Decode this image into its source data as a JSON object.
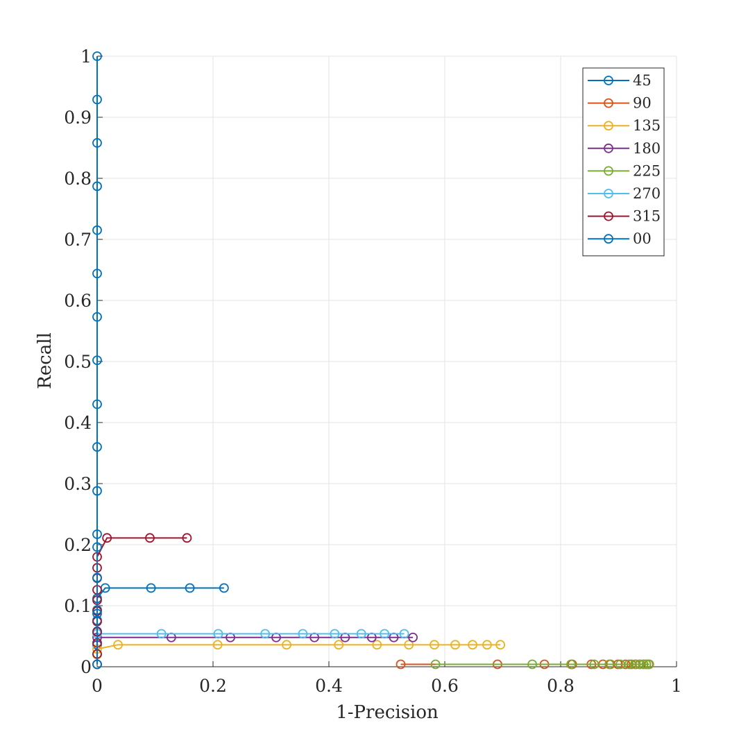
{
  "chart_data": {
    "type": "line",
    "title": "",
    "xlabel": "1-Precision",
    "ylabel": "Recall",
    "xlim": [
      0,
      1
    ],
    "ylim": [
      0,
      1
    ],
    "xticks": [
      0,
      0.2,
      0.4,
      0.6,
      0.8,
      1
    ],
    "yticks": [
      0,
      0.1,
      0.2,
      0.3,
      0.4,
      0.5,
      0.6,
      0.7,
      0.8,
      0.9,
      1
    ],
    "grid": true,
    "legend_position": "top-right",
    "marker": "circle",
    "series": [
      {
        "name": "45",
        "color": "#0072BD",
        "x": [
          0,
          0,
          0,
          0,
          0,
          0,
          0,
          0.014,
          0.093,
          0.16,
          0.219
        ],
        "y": [
          0.004,
          0.02,
          0.036,
          0.058,
          0.076,
          0.093,
          0.112,
          0.129,
          0.129,
          0.129,
          0.129
        ]
      },
      {
        "name": "90",
        "color": "#D95319",
        "x": [
          0.524,
          0.691,
          0.772,
          0.82,
          0.853,
          0.873,
          0.886,
          0.899,
          0.912,
          0.922,
          0.93,
          0.937,
          0.943,
          0.948,
          0.952
        ],
        "y": [
          0.004,
          0.004,
          0.004,
          0.004,
          0.004,
          0.004,
          0.004,
          0.004,
          0.004,
          0.004,
          0.004,
          0.004,
          0.004,
          0.004,
          0.004
        ]
      },
      {
        "name": "135",
        "color": "#EDB120",
        "x": [
          0,
          0,
          0.036,
          0.208,
          0.327,
          0.417,
          0.483,
          0.538,
          0.582,
          0.618,
          0.648,
          0.673,
          0.696
        ],
        "y": [
          0.02,
          0.029,
          0.036,
          0.036,
          0.036,
          0.036,
          0.036,
          0.036,
          0.036,
          0.036,
          0.036,
          0.036,
          0.036
        ]
      },
      {
        "name": "180",
        "color": "#7E2F8E",
        "x": [
          0,
          0.128,
          0.23,
          0.309,
          0.375,
          0.428,
          0.474,
          0.512,
          0.545
        ],
        "y": [
          0.048,
          0.048,
          0.048,
          0.048,
          0.048,
          0.048,
          0.048,
          0.048,
          0.048
        ]
      },
      {
        "name": "225",
        "color": "#77AC30",
        "x": [
          0.584,
          0.751,
          0.818,
          0.858,
          0.884,
          0.903,
          0.918,
          0.928,
          0.936,
          0.943,
          0.948,
          0.953
        ],
        "y": [
          0.004,
          0.004,
          0.004,
          0.004,
          0.004,
          0.004,
          0.004,
          0.004,
          0.004,
          0.004,
          0.004,
          0.004
        ]
      },
      {
        "name": "270",
        "color": "#4DBEEE",
        "x": [
          0,
          0.111,
          0.209,
          0.29,
          0.355,
          0.41,
          0.456,
          0.496,
          0.53
        ],
        "y": [
          0.054,
          0.054,
          0.054,
          0.054,
          0.054,
          0.054,
          0.054,
          0.054,
          0.054
        ]
      },
      {
        "name": "315",
        "color": "#A2142F",
        "x": [
          0,
          0,
          0,
          0,
          0,
          0,
          0,
          0,
          0,
          0,
          0,
          0.017,
          0.091,
          0.155
        ],
        "y": [
          0.004,
          0.021,
          0.039,
          0.057,
          0.074,
          0.091,
          0.109,
          0.126,
          0.145,
          0.162,
          0.18,
          0.211,
          0.211,
          0.211
        ]
      },
      {
        "name": "00",
        "color": "#0072BD",
        "x": [
          0,
          0,
          0,
          0,
          0,
          0,
          0,
          0,
          0,
          0,
          0,
          0,
          0,
          0,
          0,
          0
        ],
        "y": [
          0.004,
          0.087,
          0.146,
          0.217,
          0.288,
          0.36,
          0.43,
          0.502,
          0.573,
          0.644,
          0.715,
          0.787,
          0.858,
          0.929,
          1.0,
          0.196
        ]
      }
    ]
  }
}
